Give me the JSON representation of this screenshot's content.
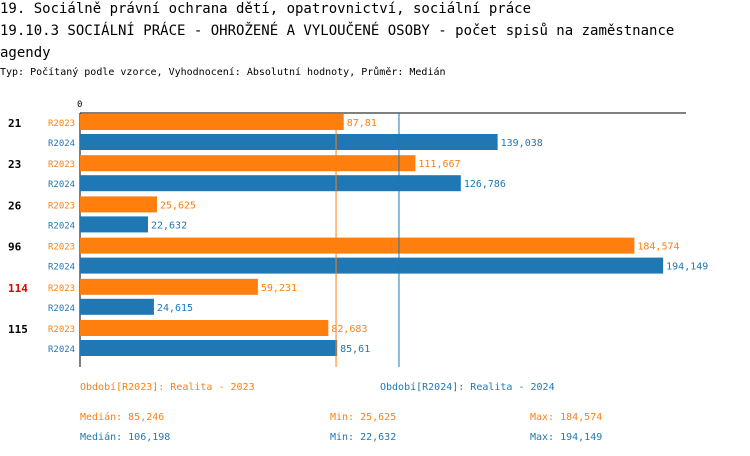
{
  "title_line1": "19. Sociálně právní ochrana dětí, opatrovnictví, sociální práce",
  "title_line2": "19.10.3 SOCIÁLNÍ PRÁCE - OHROŽENÉ A VYLOUČENÉ OSOBY - počet spisů na zaměstnance",
  "title_line3": "agendy",
  "subtitle": "Typ: Počítaný podle vzorce, Vyhodnocení: Absolutní hodnoty, Průměr: Medián",
  "colors": {
    "r2023": "#ff7f0e",
    "r2024": "#1f77b4",
    "highlight": "#e00000"
  },
  "chart_data": {
    "type": "bar",
    "orientation": "horizontal",
    "axis_zero_label": "0",
    "xlim": [
      0,
      200
    ],
    "categories": [
      "21",
      "23",
      "26",
      "96",
      "114",
      "115"
    ],
    "highlighted_category": "114",
    "series": [
      {
        "name": "R2023",
        "values": [
          87.81,
          111.667,
          25.625,
          184.574,
          59.231,
          82.683
        ],
        "labels": [
          "87,81",
          "111,667",
          "25,625",
          "184,574",
          "59,231",
          "82,683"
        ]
      },
      {
        "name": "R2024",
        "values": [
          139.038,
          126.786,
          22.632,
          194.149,
          24.615,
          85.61
        ],
        "labels": [
          "139,038",
          "126,786",
          "22,632",
          "194,149",
          "24,615",
          "85,61"
        ]
      }
    ],
    "reference_lines": [
      {
        "series": "R2023",
        "value": 85.246
      },
      {
        "series": "R2024",
        "value": 106.198
      }
    ]
  },
  "footer": {
    "legend_2023": "Období[R2023]: Realita - 2023",
    "legend_2024": "Období[R2024]: Realita - 2024",
    "median_2023": "Medián: 85,246",
    "min_2023": "Min: 25,625",
    "max_2023": "Max: 184,574",
    "median_2024": "Medián: 106,198",
    "min_2024": "Min: 22,632",
    "max_2024": "Max: 194,149"
  }
}
